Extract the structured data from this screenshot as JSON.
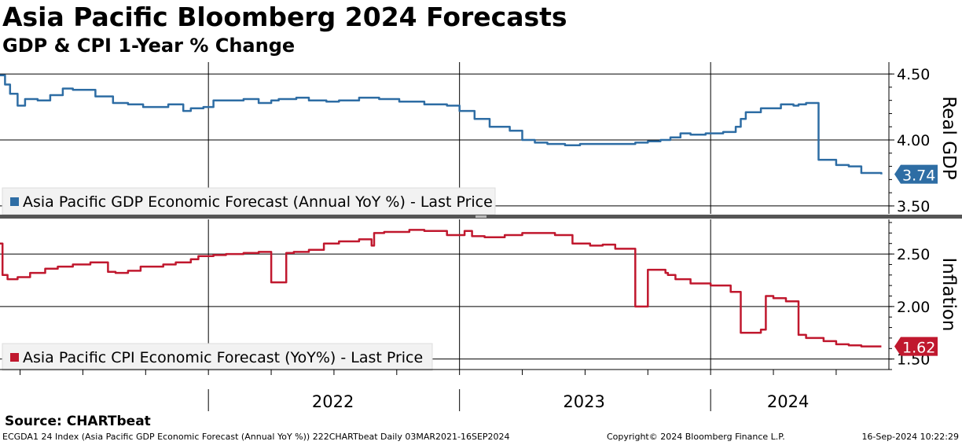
{
  "title": "Asia Pacific Bloomberg 2024 Forecasts",
  "subtitle": "GDP & CPI 1-Year % Change",
  "source": "Source: CHARTbeat",
  "footer": {
    "left": "ECGDA1 24 Index (Asia Pacific GDP Economic Forecast (Annual YoY %)) 222CHARTbeat  Daily 03MAR2021-16SEP2024",
    "middle": "Copyright© 2024 Bloomberg Finance L.P.",
    "right": "16-Sep-2024 10:22:29"
  },
  "colors": {
    "gdp": "#2e6da4",
    "cpi": "#c0182e",
    "grid": "#000000"
  },
  "chart_data": [
    {
      "type": "line",
      "ylabel": "Real GDP",
      "ylim": [
        3.44,
        4.59
      ],
      "yticks": [
        "4.50",
        "4.00",
        "3.50"
      ],
      "xlim": [
        2021.17,
        2024.71
      ],
      "x_tick_labels": [
        "2022",
        "2023",
        "2024"
      ],
      "legend": "Asia Pacific GDP Economic Forecast (Annual YoY %) - Last Price",
      "last_value_label": "3.74",
      "series": [
        {
          "name": "Asia Pacific GDP Economic Forecast (Annual YoY %) - Last Price",
          "x": [
            2021.17,
            2021.19,
            2021.21,
            2021.24,
            2021.27,
            2021.32,
            2021.37,
            2021.42,
            2021.46,
            2021.55,
            2021.62,
            2021.68,
            2021.74,
            2021.84,
            2021.9,
            2021.93,
            2021.98,
            2022.02,
            2022.07,
            2022.14,
            2022.2,
            2022.25,
            2022.28,
            2022.35,
            2022.4,
            2022.47,
            2022.52,
            2022.6,
            2022.68,
            2022.76,
            2022.86,
            2022.95,
            2023.0,
            2023.06,
            2023.12,
            2023.2,
            2023.25,
            2023.3,
            2023.35,
            2023.42,
            2023.48,
            2023.55,
            2023.62,
            2023.7,
            2023.75,
            2023.8,
            2023.84,
            2023.88,
            2023.92,
            2023.98,
            2024.05,
            2024.1,
            2024.12,
            2024.14,
            2024.2,
            2024.28,
            2024.33,
            2024.35,
            2024.38,
            2024.43,
            2024.5,
            2024.55,
            2024.6,
            2024.68
          ],
          "values": [
            4.49,
            4.42,
            4.35,
            4.26,
            4.31,
            4.3,
            4.34,
            4.39,
            4.38,
            4.33,
            4.28,
            4.27,
            4.25,
            4.27,
            4.22,
            4.24,
            4.25,
            4.3,
            4.3,
            4.31,
            4.28,
            4.3,
            4.31,
            4.32,
            4.3,
            4.29,
            4.3,
            4.32,
            4.31,
            4.29,
            4.27,
            4.26,
            4.22,
            4.16,
            4.1,
            4.07,
            4.0,
            3.98,
            3.97,
            3.96,
            3.97,
            3.97,
            3.97,
            3.98,
            3.99,
            4.0,
            4.02,
            4.05,
            4.04,
            4.05,
            4.06,
            4.1,
            4.16,
            4.21,
            4.24,
            4.27,
            4.26,
            4.27,
            4.28,
            3.85,
            3.81,
            3.8,
            3.75,
            3.74
          ]
        }
      ]
    },
    {
      "type": "line",
      "ylabel": "Inflation",
      "ylim": [
        1.4,
        2.83
      ],
      "yticks": [
        "2.50",
        "2.00",
        "1.50"
      ],
      "xlim": [
        2021.17,
        2024.71
      ],
      "x_tick_labels": [
        "2022",
        "2023",
        "2024"
      ],
      "legend": "Asia Pacific CPI Economic Forecast (YoY%) - Last Price",
      "last_value_label": "1.62",
      "series": [
        {
          "name": "Asia Pacific CPI Economic Forecast (YoY%) - Last Price",
          "x": [
            2021.17,
            2021.18,
            2021.2,
            2021.24,
            2021.29,
            2021.35,
            2021.4,
            2021.46,
            2021.53,
            2021.6,
            2021.63,
            2021.68,
            2021.73,
            2021.82,
            2021.87,
            2021.93,
            2021.96,
            2022.02,
            2022.07,
            2022.14,
            2022.2,
            2022.25,
            2022.3,
            2022.31,
            2022.34,
            2022.4,
            2022.46,
            2022.52,
            2022.6,
            2022.65,
            2022.66,
            2022.7,
            2022.8,
            2022.86,
            2022.95,
            2023.02,
            2023.05,
            2023.1,
            2023.18,
            2023.25,
            2023.3,
            2023.38,
            2023.45,
            2023.52,
            2023.57,
            2023.62,
            2023.7,
            2023.75,
            2023.82,
            2023.83,
            2023.86,
            2023.92,
            2024.0,
            2024.08,
            2024.12,
            2024.15,
            2024.2,
            2024.22,
            2024.25,
            2024.3,
            2024.35,
            2024.38,
            2024.45,
            2024.5,
            2024.55,
            2024.6,
            2024.68
          ],
          "values": [
            2.6,
            2.3,
            2.26,
            2.28,
            2.32,
            2.36,
            2.38,
            2.4,
            2.42,
            2.33,
            2.32,
            2.34,
            2.38,
            2.4,
            2.42,
            2.45,
            2.48,
            2.49,
            2.5,
            2.51,
            2.52,
            2.23,
            2.23,
            2.51,
            2.52,
            2.54,
            2.6,
            2.62,
            2.64,
            2.58,
            2.7,
            2.71,
            2.73,
            2.72,
            2.68,
            2.72,
            2.67,
            2.66,
            2.68,
            2.7,
            2.7,
            2.68,
            2.6,
            2.58,
            2.59,
            2.55,
            2.0,
            2.35,
            2.32,
            2.3,
            2.26,
            2.22,
            2.2,
            2.14,
            1.75,
            1.75,
            1.78,
            2.1,
            2.08,
            2.05,
            1.73,
            1.7,
            1.67,
            1.64,
            1.63,
            1.62,
            1.62
          ]
        }
      ]
    }
  ]
}
